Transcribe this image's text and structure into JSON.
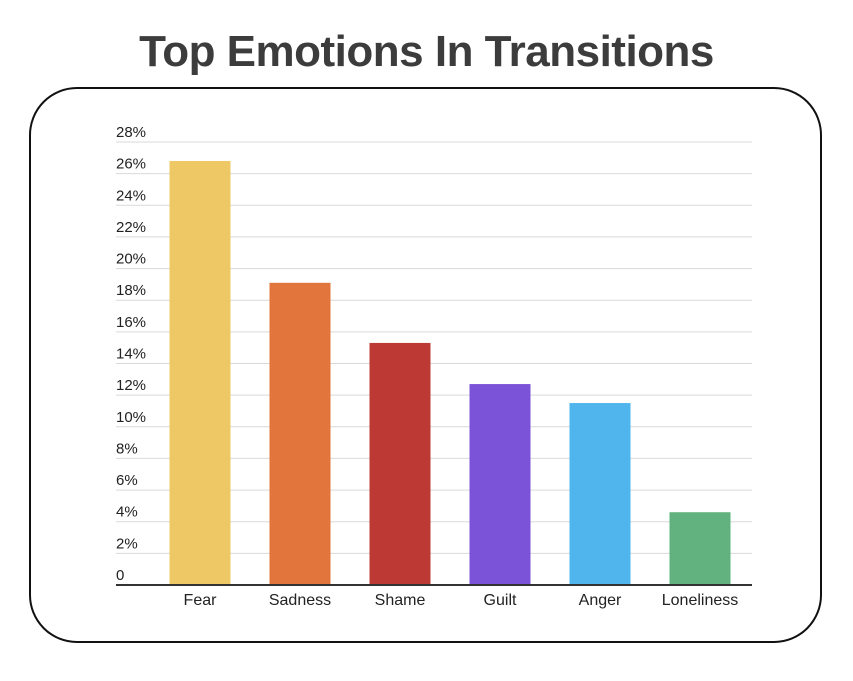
{
  "chart_data": {
    "type": "bar",
    "title": "Top Emotions In Transitions",
    "xlabel": "",
    "ylabel": "",
    "ylim": [
      0,
      28
    ],
    "y_tick_values": [
      0,
      2,
      4,
      6,
      8,
      10,
      12,
      14,
      16,
      18,
      20,
      22,
      24,
      26,
      28
    ],
    "y_tick_labels": [
      "0",
      "2%",
      "4%",
      "6%",
      "8%",
      "10%",
      "12%",
      "14%",
      "16%",
      "18%",
      "20%",
      "22%",
      "24%",
      "26%",
      "28%"
    ],
    "grid": true,
    "legend": "none",
    "categories": [
      "Fear",
      "Sadness",
      "Shame",
      "Guilt",
      "Anger",
      "Loneliness"
    ],
    "values": [
      26.8,
      19.1,
      15.3,
      12.7,
      11.5,
      4.6
    ],
    "colors": [
      "#EEC865",
      "#E2753C",
      "#BD3934",
      "#7B53D8",
      "#4FB5EC",
      "#61B27E"
    ]
  }
}
